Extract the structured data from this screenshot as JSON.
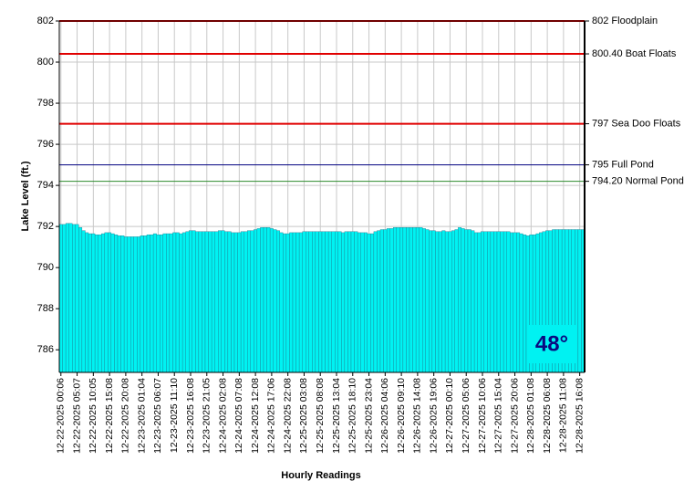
{
  "chart_data": {
    "type": "bar",
    "y_label": "Lake Level (ft.)",
    "x_label": "Hourly Readings",
    "badge": "48°",
    "color": "#00f2f2",
    "grid": true,
    "ylim": [
      784.9,
      802
    ],
    "yticks": [
      786,
      788,
      790,
      792,
      794,
      796,
      798,
      800,
      802
    ],
    "reference_lines": [
      {
        "value": 802,
        "label": "802 Floodplain",
        "color": "#e00000"
      },
      {
        "value": 800.4,
        "label": "800.40 Boat Floats",
        "color": "#e00000"
      },
      {
        "value": 797,
        "label": "797 Sea Doo Floats",
        "color": "#e00000"
      },
      {
        "value": 795,
        "label": "795 Full Pond",
        "color": "#000080"
      },
      {
        "value": 794.2,
        "label": "794.20 Normal Pond",
        "color": "#2e8b2e"
      }
    ],
    "categories": [
      "12-22-2025 00:06",
      null,
      null,
      null,
      null,
      "12-22-2025 05:07",
      null,
      null,
      null,
      null,
      "12-22-2025 10:05",
      null,
      null,
      null,
      null,
      "12-22-2025 15:08",
      null,
      null,
      null,
      null,
      "12-22-2025 20:08",
      null,
      null,
      null,
      null,
      "12-23-2025 01:04",
      null,
      null,
      null,
      null,
      "12-23-2025 06:07",
      null,
      null,
      null,
      null,
      "12-23-2025 11:10",
      null,
      null,
      null,
      null,
      "12-23-2025 16:08",
      null,
      null,
      null,
      null,
      "12-23-2025 21:05",
      null,
      null,
      null,
      null,
      "12-24-2025 02:08",
      null,
      null,
      null,
      null,
      "12-24-2025 07:08",
      null,
      null,
      null,
      null,
      "12-24-2025 12:08",
      null,
      null,
      null,
      null,
      "12-24-2025 17:06",
      null,
      null,
      null,
      null,
      "12-24-2025 22:08",
      null,
      null,
      null,
      null,
      "12-25-2025 03:08",
      null,
      null,
      null,
      null,
      "12-25-2025 08:08",
      null,
      null,
      null,
      null,
      "12-25-2025 13:04",
      null,
      null,
      null,
      null,
      "12-25-2025 18:10",
      null,
      null,
      null,
      null,
      "12-25-2025 23:04",
      null,
      null,
      null,
      null,
      "12-26-2025 04:06",
      null,
      null,
      null,
      null,
      "12-26-2025 09:10",
      null,
      null,
      null,
      null,
      "12-26-2025 14:08",
      null,
      null,
      null,
      null,
      "12-26-2025 19:06",
      null,
      null,
      null,
      null,
      "12-27-2025 00:10",
      null,
      null,
      null,
      null,
      "12-27-2025 05:06",
      null,
      null,
      null,
      null,
      "12-27-2025 10:06",
      null,
      null,
      null,
      null,
      "12-27-2025 15:04",
      null,
      null,
      null,
      null,
      "12-27-2025 20:06",
      null,
      null,
      null,
      null,
      "12-28-2025 01:08",
      null,
      null,
      null,
      null,
      "12-28-2025 06:08",
      null,
      null,
      null,
      null,
      "12-28-2025 11:08",
      null,
      null,
      null,
      null,
      "12-28-2025 16:08",
      null
    ],
    "values": [
      792.1,
      792.1,
      792.15,
      792.15,
      792.1,
      792.1,
      791.95,
      791.8,
      791.7,
      791.65,
      791.65,
      791.6,
      791.6,
      791.65,
      791.7,
      791.7,
      791.65,
      791.6,
      791.55,
      791.55,
      791.5,
      791.5,
      791.5,
      791.5,
      791.5,
      791.55,
      791.55,
      791.6,
      791.6,
      791.65,
      791.6,
      791.6,
      791.65,
      791.65,
      791.65,
      791.7,
      791.7,
      791.65,
      791.7,
      791.75,
      791.8,
      791.8,
      791.75,
      791.75,
      791.75,
      791.75,
      791.75,
      791.75,
      791.75,
      791.8,
      791.8,
      791.75,
      791.75,
      791.7,
      791.7,
      791.7,
      791.75,
      791.75,
      791.8,
      791.8,
      791.85,
      791.9,
      791.95,
      791.95,
      791.95,
      791.9,
      791.85,
      791.8,
      791.7,
      791.65,
      791.65,
      791.7,
      791.7,
      791.7,
      791.7,
      791.75,
      791.75,
      791.75,
      791.75,
      791.75,
      791.75,
      791.75,
      791.75,
      791.75,
      791.75,
      791.75,
      791.75,
      791.7,
      791.75,
      791.75,
      791.75,
      791.75,
      791.7,
      791.7,
      791.7,
      791.65,
      791.65,
      791.75,
      791.8,
      791.85,
      791.85,
      791.9,
      791.9,
      791.95,
      791.95,
      791.95,
      791.95,
      791.95,
      791.95,
      791.95,
      791.95,
      791.95,
      791.9,
      791.85,
      791.8,
      791.8,
      791.75,
      791.75,
      791.8,
      791.75,
      791.75,
      791.8,
      791.85,
      791.95,
      791.9,
      791.85,
      791.85,
      791.8,
      791.7,
      791.7,
      791.75,
      791.75,
      791.75,
      791.75,
      791.75,
      791.75,
      791.75,
      791.75,
      791.75,
      791.7,
      791.7,
      791.7,
      791.65,
      791.6,
      791.55,
      791.6,
      791.6,
      791.65,
      791.7,
      791.75,
      791.8,
      791.8,
      791.85,
      791.85,
      791.85,
      791.85,
      791.85,
      791.85,
      791.85,
      791.85,
      791.85,
      791.85
    ]
  }
}
